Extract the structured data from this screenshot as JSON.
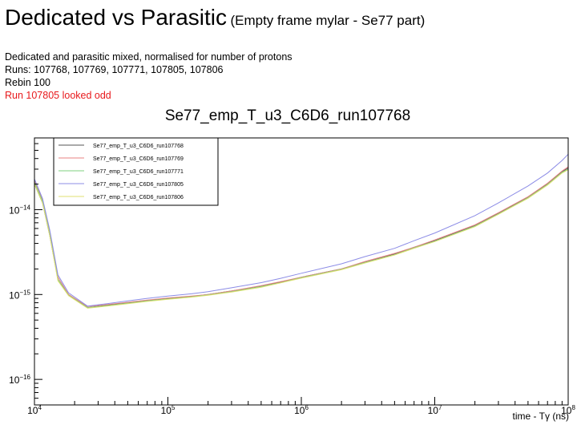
{
  "slide": {
    "title": "Dedicated vs Parasitic",
    "subtitle": "(Empty frame mylar - Se77 part)",
    "notes": [
      "Dedicated and parasitic mixed, normalised for number of protons",
      "Runs: 107768, 107769, 107771, 107805, 107806",
      "Rebin 100"
    ],
    "warning": "Run 107805 looked odd",
    "warning_color": "#e8191c"
  },
  "chart_data": {
    "type": "line",
    "title": "Se77_emp_T_u3_C6D6_run107768",
    "xlabel": "time - Tγ (ns)",
    "ylabel": "",
    "x_scale": "log",
    "y_scale": "log",
    "xlim": [
      10000,
      100000000
    ],
    "ylim": [
      5e-17,
      7e-14
    ],
    "x_ticks": [
      {
        "v": 10000,
        "base": "10",
        "exp": "4"
      },
      {
        "v": 100000,
        "base": "10",
        "exp": "5"
      },
      {
        "v": 1000000,
        "base": "10",
        "exp": "6"
      },
      {
        "v": 10000000,
        "base": "10",
        "exp": "7"
      },
      {
        "v": 100000000,
        "base": "10",
        "exp": "8"
      }
    ],
    "y_ticks": [
      {
        "v": 1e-14,
        "base": "10",
        "exp": "−14"
      },
      {
        "v": 1e-15,
        "base": "10",
        "exp": "−15"
      },
      {
        "v": 1e-16,
        "base": "10",
        "exp": "−16"
      }
    ],
    "grid": false,
    "legend_position": "top-left",
    "series": [
      {
        "name": "Se77_emp_T_u3_C6D6_run107768",
        "color": "#555555",
        "x": [
          10000,
          11500,
          13000,
          15000,
          18000,
          25000,
          35000,
          50000,
          70000,
          100000,
          150000,
          200000,
          300000,
          500000,
          700000,
          1000000,
          2000000,
          3000000,
          5000000,
          7000000,
          10000000,
          20000000,
          30000000,
          50000000,
          70000000,
          90000000,
          100000000
        ],
        "y": [
          2e-14,
          1.2e-14,
          5e-15,
          1.5e-15,
          1e-15,
          7e-16,
          7.5e-16,
          8e-16,
          8.5e-16,
          9e-16,
          9.5e-16,
          1e-15,
          1.1e-15,
          1.25e-15,
          1.4e-15,
          1.6e-15,
          2e-15,
          2.4e-15,
          3e-15,
          3.6e-15,
          4.3e-15,
          6.5e-15,
          9e-15,
          1.4e-14,
          2e-14,
          2.8e-14,
          3.1e-14
        ]
      },
      {
        "name": "Se77_emp_T_u3_C6D6_run107769",
        "color": "#e88080",
        "x": [
          10000,
          11500,
          13000,
          15000,
          18000,
          25000,
          35000,
          50000,
          70000,
          100000,
          150000,
          200000,
          300000,
          500000,
          700000,
          1000000,
          2000000,
          3000000,
          5000000,
          7000000,
          10000000,
          20000000,
          30000000,
          50000000,
          70000000,
          90000000,
          100000000
        ],
        "y": [
          2.2e-14,
          1.3e-14,
          5.5e-15,
          1.6e-15,
          1e-15,
          7.2e-16,
          7.6e-16,
          8.1e-16,
          8.6e-16,
          9.1e-16,
          9.6e-16,
          1e-15,
          1.1e-15,
          1.27e-15,
          1.42e-15,
          1.6e-15,
          2e-15,
          2.45e-15,
          3.05e-15,
          3.6e-15,
          4.4e-15,
          6.6e-15,
          9.2e-15,
          1.42e-14,
          2.05e-14,
          2.85e-14,
          3.2e-14
        ]
      },
      {
        "name": "Se77_emp_T_u3_C6D6_run107771",
        "color": "#7fd07f",
        "x": [
          10000,
          11500,
          13000,
          15000,
          18000,
          25000,
          35000,
          50000,
          70000,
          100000,
          150000,
          200000,
          300000,
          500000,
          700000,
          1000000,
          2000000,
          3000000,
          5000000,
          7000000,
          10000000,
          20000000,
          30000000,
          50000000,
          70000000,
          90000000,
          100000000
        ],
        "y": [
          2.1e-14,
          1.25e-14,
          5.2e-15,
          1.5e-15,
          9.8e-16,
          7e-16,
          7.4e-16,
          7.9e-16,
          8.4e-16,
          8.9e-16,
          9.4e-16,
          9.9e-16,
          1.08e-15,
          1.24e-15,
          1.38e-15,
          1.58e-15,
          1.98e-15,
          2.38e-15,
          2.95e-15,
          3.55e-15,
          4.25e-15,
          6.4e-15,
          8.9e-15,
          1.38e-14,
          1.98e-14,
          2.75e-14,
          3e-14
        ]
      },
      {
        "name": "Se77_emp_T_u3_C6D6_run107805",
        "color": "#8c8ce6",
        "x": [
          10000,
          11500,
          13000,
          15000,
          18000,
          25000,
          35000,
          50000,
          70000,
          100000,
          150000,
          200000,
          300000,
          500000,
          700000,
          1000000,
          2000000,
          3000000,
          5000000,
          7000000,
          10000000,
          20000000,
          30000000,
          50000000,
          70000000,
          90000000,
          100000000
        ],
        "y": [
          2.3e-14,
          1.35e-14,
          5.8e-15,
          1.7e-15,
          1.05e-15,
          7.3e-16,
          7.8e-16,
          8.4e-16,
          9e-16,
          9.6e-16,
          1.02e-15,
          1.08e-15,
          1.2e-15,
          1.38e-15,
          1.55e-15,
          1.78e-15,
          2.3e-15,
          2.8e-15,
          3.5e-15,
          4.3e-15,
          5.3e-15,
          8.5e-15,
          1.2e-14,
          1.9e-14,
          2.7e-14,
          3.8e-14,
          4.5e-14
        ]
      },
      {
        "name": "Se77_emp_T_u3_C6D6_run107806",
        "color": "#e0e070",
        "x": [
          10000,
          11500,
          13000,
          15000,
          18000,
          25000,
          35000,
          50000,
          70000,
          100000,
          150000,
          200000,
          300000,
          500000,
          700000,
          1000000,
          2000000,
          3000000,
          5000000,
          7000000,
          10000000,
          20000000,
          30000000,
          50000000,
          70000000,
          90000000,
          100000000
        ],
        "y": [
          2e-14,
          1.2e-14,
          5e-15,
          1.45e-15,
          9.7e-16,
          6.9e-16,
          7.3e-16,
          7.8e-16,
          8.3e-16,
          8.8e-16,
          9.3e-16,
          9.8e-16,
          1.07e-15,
          1.22e-15,
          1.37e-15,
          1.56e-15,
          1.96e-15,
          2.35e-15,
          2.92e-15,
          3.5e-15,
          4.2e-15,
          6.3e-15,
          8.8e-15,
          1.36e-14,
          1.95e-14,
          2.7e-14,
          2.95e-14
        ]
      }
    ]
  }
}
